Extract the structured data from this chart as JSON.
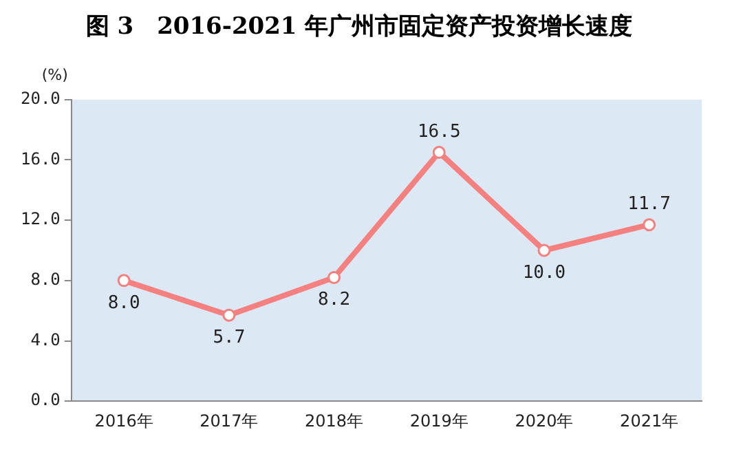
{
  "chart_data": {
    "type": "line",
    "title": "图 3　2016-2021 年广州市固定资产投资增长速度",
    "ylabel": "(%)",
    "categories": [
      "2016年",
      "2017年",
      "2018年",
      "2019年",
      "2020年",
      "2021年"
    ],
    "series": [
      {
        "color": "#f4817f",
        "values": [
          8.0,
          5.7,
          8.2,
          16.5,
          10.0,
          11.7
        ],
        "value_labels": [
          "8.0",
          "5.7",
          "8.2",
          "16.5",
          "10.0",
          "11.7"
        ]
      }
    ],
    "ylim": [
      0,
      20
    ],
    "yticks": [
      {
        "value": 0,
        "label": "0.0"
      },
      {
        "value": 4,
        "label": "4.0"
      },
      {
        "value": 8,
        "label": "8.0"
      },
      {
        "value": 12,
        "label": "12.0"
      },
      {
        "value": 16,
        "label": "16.0"
      },
      {
        "value": 20,
        "label": "20.0"
      }
    ],
    "grid": false,
    "legend": false,
    "marker": "circle",
    "line_style": "solid"
  }
}
